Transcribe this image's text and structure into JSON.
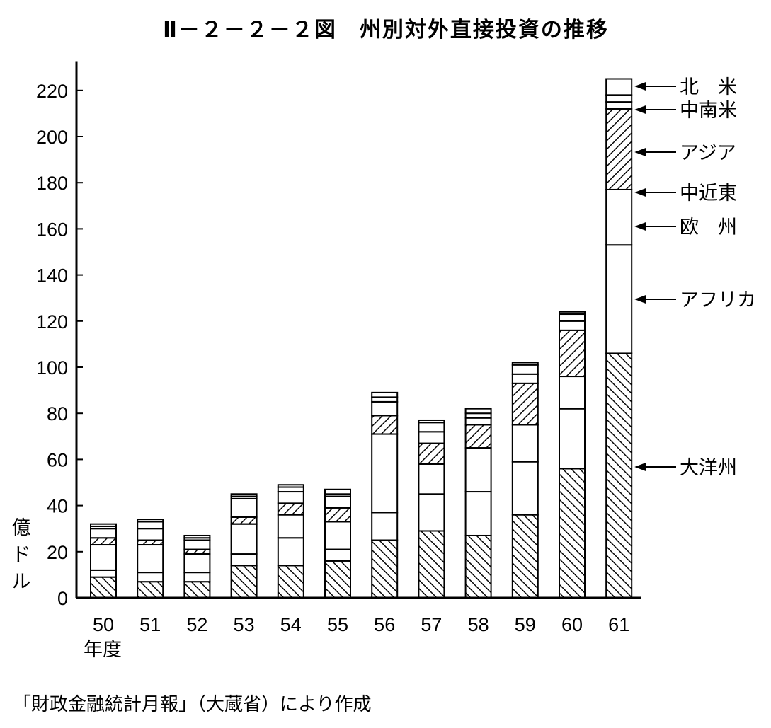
{
  "chart_data": {
    "type": "bar",
    "stacked": true,
    "title": "Ⅱ－２－２－２図　州別対外直接投資の推移",
    "ylabel": "億ドル",
    "xlabel": "年度",
    "ylim": [
      0,
      225
    ],
    "yticks": [
      0,
      20,
      40,
      60,
      80,
      100,
      120,
      140,
      160,
      180,
      200,
      220
    ],
    "categories": [
      "50",
      "51",
      "52",
      "53",
      "54",
      "55",
      "56",
      "57",
      "58",
      "59",
      "60",
      "61"
    ],
    "series": [
      {
        "name": "北　米",
        "pattern": "hatch-back",
        "values": [
          9,
          7,
          7,
          14,
          14,
          16,
          25,
          29,
          27,
          36,
          56,
          106
        ]
      },
      {
        "name": "中南米",
        "pattern": "none",
        "values": [
          3,
          4,
          4,
          5,
          12,
          5,
          12,
          16,
          19,
          23,
          26,
          47
        ]
      },
      {
        "name": "アジア",
        "pattern": "none",
        "values": [
          11,
          12,
          8,
          13,
          10,
          12,
          34,
          13,
          19,
          16,
          14,
          24
        ]
      },
      {
        "name": "中近東",
        "pattern": "hatch-forward",
        "values": [
          3,
          2,
          2,
          3,
          5,
          6,
          8,
          9,
          10,
          18,
          20,
          35
        ]
      },
      {
        "name": "欧　州",
        "pattern": "none",
        "values": [
          4,
          5,
          4,
          8,
          5,
          5,
          6,
          5,
          3,
          4,
          4,
          3
        ]
      },
      {
        "name": "アフリカ",
        "pattern": "none",
        "values": [
          1,
          3,
          1,
          1,
          2,
          1,
          2,
          4,
          2,
          4,
          3,
          3
        ]
      },
      {
        "name": "大洋州",
        "pattern": "none",
        "values": [
          1,
          1,
          1,
          1,
          1,
          2,
          2,
          1,
          2,
          1,
          1,
          7
        ]
      }
    ],
    "legend_position": "right, arrows pointing to FY61 bar",
    "grid": false
  },
  "source": "「財政金融統計月報」（大蔵省）により作成"
}
